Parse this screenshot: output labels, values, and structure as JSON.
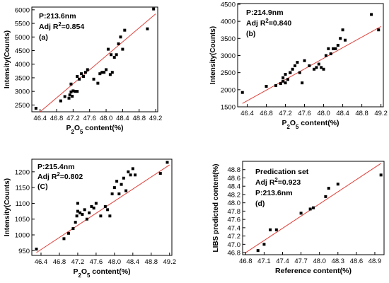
{
  "chart_data": [
    {
      "type": "scatter",
      "xlabel": "P₂O₅ content(%)",
      "ylabel": "Intensity(Counts)",
      "xlim": [
        46.2,
        49.25
      ],
      "ylim": [
        2250,
        6100
      ],
      "xticks": [
        "46.4",
        "46.8",
        "47.2",
        "47.6",
        "48.0",
        "48.4",
        "48.8",
        "49.2"
      ],
      "yticks": [
        "2500",
        "3000",
        "3500",
        "4000",
        "4500",
        "5000",
        "5500",
        "6000"
      ],
      "annotations": [
        "P:213.6nm",
        "Adj R²=0.854",
        "(a)"
      ],
      "fit_line": {
        "x": [
          46.3,
          49.2
        ],
        "y": [
          2120,
          5850
        ]
      },
      "points": {
        "x": [
          46.3,
          46.9,
          47.0,
          47.1,
          47.12,
          47.15,
          47.15,
          47.18,
          47.2,
          47.25,
          47.3,
          47.3,
          47.35,
          47.4,
          47.45,
          47.5,
          47.55,
          47.7,
          47.8,
          47.85,
          47.9,
          47.95,
          48.0,
          48.05,
          48.1,
          48.12,
          48.15,
          48.2,
          48.25,
          48.3,
          48.35,
          48.4,
          48.45,
          49.0,
          49.15
        ],
        "y": [
          2380,
          2650,
          2810,
          2750,
          2870,
          2980,
          3270,
          2820,
          3020,
          3000,
          3000,
          3550,
          3450,
          3650,
          3550,
          3700,
          3800,
          3450,
          3300,
          3650,
          3700,
          3700,
          3800,
          4550,
          3620,
          4350,
          3700,
          4250,
          4350,
          4750,
          5000,
          4550,
          5250,
          5300,
          6030
        ]
      }
    },
    {
      "type": "scatter",
      "xlabel": "P₂O₅ content(%)",
      "ylabel": "Intensity(Counts)",
      "xlim": [
        46.2,
        49.25
      ],
      "ylim": [
        1500,
        4520
      ],
      "xticks": [
        "46.4",
        "46.8",
        "47.2",
        "47.6",
        "48.0",
        "48.4",
        "48.8",
        "49.2"
      ],
      "yticks": [
        "1500",
        "2000",
        "2500",
        "3000",
        "3500",
        "4000",
        "4500"
      ],
      "annotations": [
        "P:214.9nm",
        "Adj R²=0.840",
        "(b)"
      ],
      "fit_line": {
        "x": [
          46.3,
          49.2
        ],
        "y": [
          1600,
          3850
        ]
      },
      "points": {
        "x": [
          46.3,
          46.8,
          47.0,
          47.1,
          47.15,
          47.15,
          47.2,
          47.2,
          47.25,
          47.3,
          47.3,
          47.35,
          47.4,
          47.45,
          47.5,
          47.55,
          47.6,
          47.7,
          47.8,
          47.85,
          47.9,
          47.95,
          48.0,
          48.05,
          48.1,
          48.15,
          48.2,
          48.25,
          48.3,
          48.35,
          48.4,
          48.45,
          49.0,
          49.15
        ],
        "y": [
          1920,
          2100,
          2120,
          2180,
          2250,
          2350,
          2200,
          2450,
          2300,
          2500,
          2500,
          2600,
          2700,
          2800,
          2500,
          2200,
          2850,
          2700,
          2600,
          2650,
          2750,
          2650,
          2600,
          3000,
          3200,
          3050,
          3200,
          3200,
          3300,
          3500,
          3750,
          3450,
          4200,
          3750
        ]
      }
    },
    {
      "type": "scatter",
      "xlabel": "P₂O₅ content(%)",
      "ylabel": "Intensity(Counts)",
      "xlim": [
        46.2,
        49.25
      ],
      "ylim": [
        935,
        1240
      ],
      "xticks": [
        "46.4",
        "46.8",
        "47.2",
        "47.6",
        "48.0",
        "48.4",
        "48.8",
        "49.2"
      ],
      "yticks": [
        "950",
        "1000",
        "1050",
        "1100",
        "1150",
        "1200"
      ],
      "annotations": [
        "P:215.4nm",
        "Adj R²=0.802",
        "(C)"
      ],
      "fit_line": {
        "x": [
          46.3,
          49.2
        ],
        "y": [
          944,
          1222
        ]
      },
      "points": {
        "x": [
          46.3,
          46.9,
          47.0,
          47.1,
          47.15,
          47.18,
          47.2,
          47.2,
          47.25,
          47.3,
          47.35,
          47.4,
          47.45,
          47.5,
          47.55,
          47.6,
          47.7,
          47.8,
          47.85,
          47.9,
          47.95,
          48.0,
          48.05,
          48.1,
          48.15,
          48.2,
          48.25,
          48.3,
          48.35,
          48.4,
          48.45,
          49.0,
          49.15
        ],
        "y": [
          955,
          988,
          1005,
          1020,
          1040,
          1060,
          1075,
          1100,
          1070,
          1065,
          1080,
          1050,
          1070,
          1090,
          1085,
          1100,
          1060,
          1090,
          1080,
          1060,
          1130,
          1150,
          1170,
          1130,
          1160,
          1180,
          1140,
          1200,
          1190,
          1210,
          1190,
          1195,
          1230
        ]
      }
    },
    {
      "type": "scatter",
      "xlabel": "Reference content(%)",
      "ylabel": "LIBS predicted content(%)",
      "xlim": [
        46.75,
        49.05
      ],
      "ylim": [
        46.75,
        49.0
      ],
      "xticks": [
        "46.8",
        "47.1",
        "47.4",
        "47.7",
        "48.0",
        "48.3",
        "48.6",
        "48.9"
      ],
      "yticks": [
        "46.8",
        "47.0",
        "47.2",
        "47.4",
        "47.6",
        "47.8",
        "48.0",
        "48.2",
        "48.4",
        "48.6",
        "48.8"
      ],
      "annotations": [
        "Predication set",
        "Adj R²=0.923",
        "P:213.6nm",
        "(d)"
      ],
      "fit_line": {
        "x": [
          46.8,
          49.0
        ],
        "y": [
          46.8,
          48.95
        ]
      },
      "points": {
        "x": [
          47.0,
          47.1,
          47.2,
          47.3,
          47.7,
          47.85,
          47.9,
          48.1,
          48.15,
          48.3,
          49.0
        ],
        "y": [
          46.85,
          47.0,
          47.35,
          47.35,
          47.75,
          47.85,
          47.88,
          48.15,
          48.35,
          48.45,
          48.67
        ]
      }
    }
  ]
}
